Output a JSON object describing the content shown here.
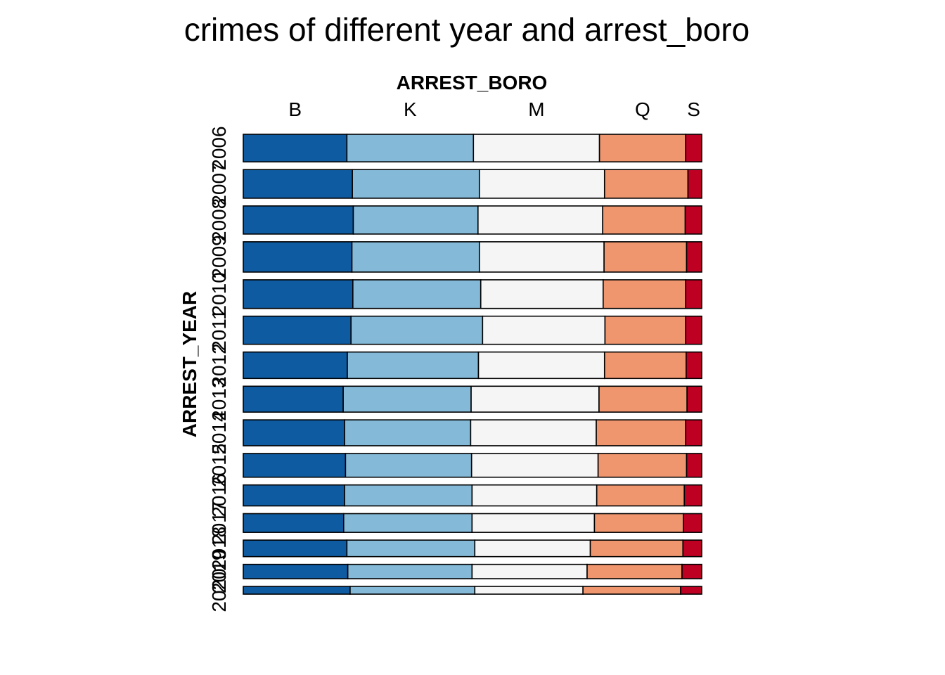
{
  "chart_data": {
    "type": "mosaic",
    "title": "crimes of different year and arrest_boro",
    "xlabel": "ARREST_BORO",
    "ylabel": "ARREST_YEAR",
    "columns": [
      "B",
      "K",
      "M",
      "Q",
      "S"
    ],
    "colors": [
      "#0f5ba1",
      "#84b9d7",
      "#f5f5f5",
      "#f0966f",
      "#be0023"
    ],
    "rows": [
      {
        "year": "2006",
        "share": 0.0735,
        "fractions": [
          0.226,
          0.276,
          0.275,
          0.188,
          0.035
        ]
      },
      {
        "year": "2007",
        "share": 0.0764,
        "fractions": [
          0.238,
          0.277,
          0.273,
          0.182,
          0.03
        ]
      },
      {
        "year": "2008",
        "share": 0.075,
        "fractions": [
          0.24,
          0.272,
          0.272,
          0.18,
          0.036
        ]
      },
      {
        "year": "2009",
        "share": 0.0808,
        "fractions": [
          0.237,
          0.278,
          0.272,
          0.18,
          0.033
        ]
      },
      {
        "year": "2010",
        "share": 0.0764,
        "fractions": [
          0.239,
          0.279,
          0.267,
          0.18,
          0.035
        ]
      },
      {
        "year": "2011",
        "share": 0.075,
        "fractions": [
          0.235,
          0.287,
          0.267,
          0.176,
          0.035
        ]
      },
      {
        "year": "2012",
        "share": 0.0706,
        "fractions": [
          0.227,
          0.286,
          0.275,
          0.178,
          0.034
        ]
      },
      {
        "year": "2013",
        "share": 0.0691,
        "fractions": [
          0.218,
          0.279,
          0.279,
          0.192,
          0.032
        ]
      },
      {
        "year": "2014",
        "share": 0.0691,
        "fractions": [
          0.221,
          0.275,
          0.274,
          0.195,
          0.035
        ]
      },
      {
        "year": "2015",
        "share": 0.0633,
        "fractions": [
          0.223,
          0.275,
          0.276,
          0.193,
          0.033
        ]
      },
      {
        "year": "2016",
        "share": 0.0559,
        "fractions": [
          0.221,
          0.278,
          0.272,
          0.191,
          0.038
        ]
      },
      {
        "year": "2017",
        "share": 0.05,
        "fractions": [
          0.219,
          0.28,
          0.267,
          0.194,
          0.04
        ]
      },
      {
        "year": "2018",
        "share": 0.0441,
        "fractions": [
          0.226,
          0.279,
          0.252,
          0.202,
          0.041
        ]
      },
      {
        "year": "2019",
        "share": 0.0382,
        "fractions": [
          0.228,
          0.271,
          0.251,
          0.207,
          0.043
        ]
      },
      {
        "year": "2020",
        "share": 0.0206,
        "fractions": [
          0.233,
          0.272,
          0.236,
          0.213,
          0.046
        ]
      }
    ]
  }
}
